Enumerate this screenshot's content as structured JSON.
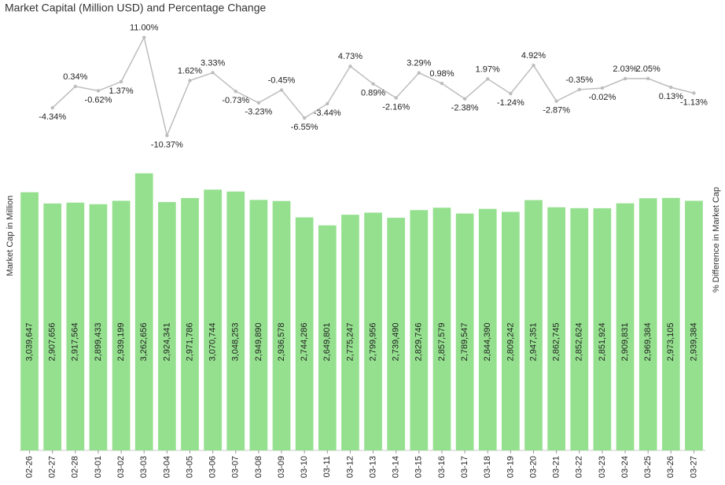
{
  "chart_data": {
    "type": "bar-line",
    "title": "Market Capital (Million USD) and Percentage Change",
    "ylabel": "Market Cap in Million",
    "y2label": "% Difference in Market Cap",
    "categories": [
      "02-26",
      "02-27",
      "02-28",
      "03-01",
      "03-02",
      "03-03",
      "03-04",
      "03-05",
      "03-06",
      "03-07",
      "03-08",
      "03-09",
      "03-10",
      "03-11",
      "03-12",
      "03-13",
      "03-14",
      "03-15",
      "03-16",
      "03-17",
      "03-18",
      "03-19",
      "03-20",
      "03-21",
      "03-22",
      "03-23",
      "03-24",
      "03-25",
      "03-26",
      "03-27"
    ],
    "ylim": [
      0,
      5100000
    ],
    "y2lim": [
      -79,
      15.4
    ],
    "series": [
      {
        "name": "Market Cap in Million",
        "type": "bar",
        "color": "#95e08f",
        "values": [
          3039647,
          2907656,
          2917564,
          2899433,
          2939199,
          3262656,
          2924341,
          2971786,
          3070744,
          3048253,
          2949890,
          2936578,
          2744286,
          2649801,
          2775247,
          2799956,
          2739490,
          2829746,
          2857579,
          2789547,
          2844390,
          2809242,
          2947351,
          2862745,
          2852624,
          2851924,
          2909831,
          2969384,
          2973105,
          2939384
        ],
        "value_labels": [
          "3,039,647",
          "2,907,656",
          "2,917,564",
          "2,899,433",
          "2,939,199",
          "3,262,656",
          "2,924,341",
          "2,971,786",
          "3,070,744",
          "3,048,253",
          "2,949,890",
          "2,936,578",
          "2,744,286",
          "2,649,801",
          "2,775,247",
          "2,799,956",
          "2,739,490",
          "2,829,746",
          "2,857,579",
          "2,789,547",
          "2,844,390",
          "2,809,242",
          "2,947,351",
          "2,862,745",
          "2,852,624",
          "2,851,924",
          "2,909,831",
          "2,969,384",
          "2,973,105",
          "2,939,384"
        ]
      },
      {
        "name": "% Difference in Market Cap",
        "type": "line",
        "color": "#bdbdbd",
        "axis": "y2",
        "values": [
          null,
          -4.34,
          0.34,
          -0.62,
          1.37,
          11.0,
          -10.37,
          1.62,
          3.33,
          -0.73,
          -3.23,
          -0.45,
          -6.55,
          -3.44,
          4.73,
          0.89,
          -2.16,
          3.29,
          0.98,
          -2.38,
          1.97,
          -1.24,
          4.92,
          -2.87,
          -0.35,
          -0.02,
          2.03,
          2.05,
          0.13,
          -1.13
        ],
        "value_labels": [
          null,
          "-4.34%",
          "0.34%",
          "-0.62%",
          "1.37%",
          "11.00%",
          "-10.37%",
          "1.62%",
          "3.33%",
          "-0.73%",
          "-3.23%",
          "-0.45%",
          "-6.55%",
          "-3.44%",
          "4.73%",
          "0.89%",
          "-2.16%",
          "3.29%",
          "0.98%",
          "-2.38%",
          "1.97%",
          "-1.24%",
          "4.92%",
          "-2.87%",
          "-0.35%",
          "-0.02%",
          "2.03%",
          "2.05%",
          "0.13%",
          "-1.13%"
        ]
      }
    ]
  }
}
